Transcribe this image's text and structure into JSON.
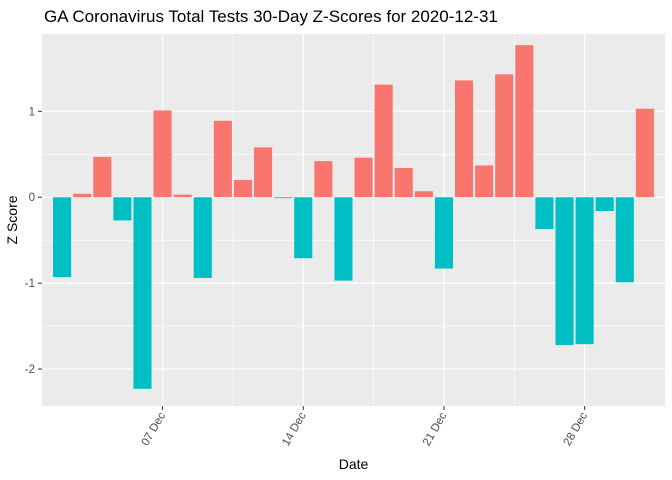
{
  "chart_data": {
    "type": "bar",
    "title": "GA Coronavirus Total Tests 30-Day Z-Scores for 2020-12-31",
    "xlabel": "Date",
    "ylabel": "Z Score",
    "x_start": "2020-12-02",
    "x_end": "2020-12-31",
    "xlim": [
      "2020-12-01",
      "2021-01-01"
    ],
    "x_ticks": [
      {
        "date": "2020-12-07",
        "label": "07 Dec"
      },
      {
        "date": "2020-12-14",
        "label": "14 Dec"
      },
      {
        "date": "2020-12-21",
        "label": "21 Dec"
      },
      {
        "date": "2020-12-28",
        "label": "28 Dec"
      }
    ],
    "y_ticks": [
      {
        "value": -2,
        "label": "-2"
      },
      {
        "value": -1,
        "label": "-1"
      },
      {
        "value": 0,
        "label": "0"
      },
      {
        "value": 1,
        "label": "1"
      }
    ],
    "ylim": [
      -2.43,
      1.9
    ],
    "grid": true,
    "legend": "none",
    "colors": {
      "positive": "#F8766D",
      "negative": "#00BFC4",
      "panel": "#EBEBEB",
      "grid": "#FFFFFF"
    },
    "values": [
      -0.93,
      0.04,
      0.47,
      -0.27,
      -2.23,
      1.01,
      0.03,
      -0.94,
      0.89,
      0.2,
      0.58,
      -0.01,
      -0.71,
      0.42,
      -0.97,
      0.46,
      1.31,
      0.34,
      0.07,
      -0.83,
      1.36,
      0.37,
      1.43,
      1.77,
      -0.37,
      -1.72,
      -1.71,
      -0.16,
      -0.99,
      1.03
    ]
  }
}
